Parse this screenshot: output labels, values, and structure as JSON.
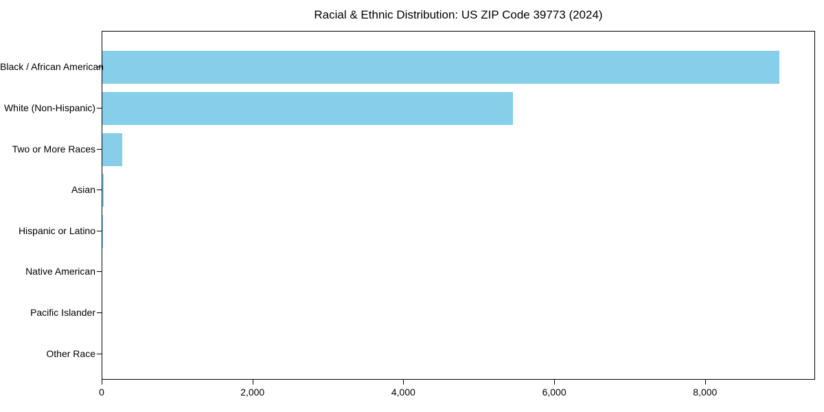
{
  "chart_data": {
    "type": "bar",
    "orientation": "horizontal",
    "title": "Racial & Ethnic Distribution: US ZIP Code 39773 (2024)",
    "categories": [
      "Black / African American",
      "White (Non-Hispanic)",
      "Two or More Races",
      "Asian",
      "Hispanic or Latino",
      "Native American",
      "Pacific Islander",
      "Other Race"
    ],
    "values": [
      8980,
      5445,
      260,
      15,
      12,
      0,
      0,
      0
    ],
    "xlabel": "",
    "ylabel": "",
    "xlim": [
      0,
      9440
    ],
    "x_ticks": [
      0,
      2000,
      4000,
      6000,
      8000
    ],
    "x_tick_labels": [
      "0",
      "2,000",
      "4,000",
      "6,000",
      "8,000"
    ],
    "bar_color": "#87CEEB",
    "axis_color": "#000000",
    "background_color": "#ffffff",
    "grid": false,
    "legend": false
  }
}
